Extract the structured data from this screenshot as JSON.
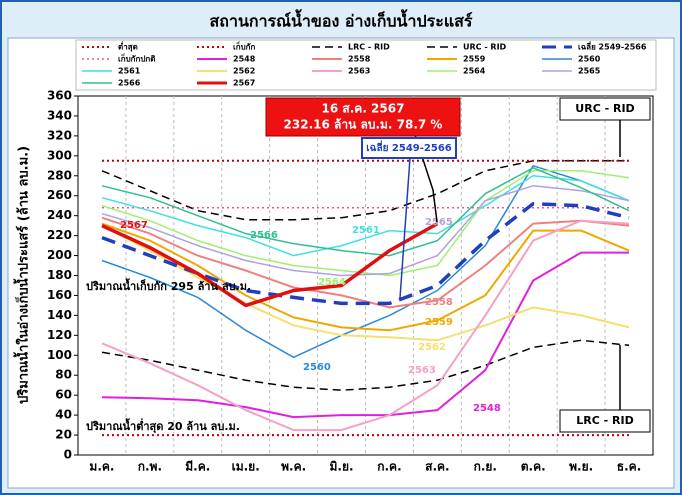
{
  "chart_data": {
    "type": "line",
    "title": "สถานการณ์น้ำของ อ่างเก็บน้ำประแสร์",
    "y_label": "ปริมาณน้ำในอ่างเก็บน้ำประแสร์ (ล้าน ลบ.ม.)",
    "annotations": {
      "latest_date": "16 ส.ค. 2567",
      "latest_volume": "232.16 ล้าน ลบ.ม. 78.7 %",
      "storage_note": "ปริมาณน้ำเก็บกัก 295 ล้าน ลบ.ม.",
      "min_note": "ปริมาณน้ำต่ำสุด 20 ล้าน ลบ.ม."
    },
    "categories": [
      "ม.ค.",
      "ก.พ.",
      "มี.ค.",
      "เม.ย.",
      "พ.ค.",
      "มิ.ย.",
      "ก.ค.",
      "ส.ค.",
      "ก.ย.",
      "ต.ค.",
      "พ.ย.",
      "ธ.ค."
    ],
    "ylim": [
      0,
      360
    ],
    "yticks": [
      0,
      20,
      40,
      60,
      80,
      100,
      120,
      140,
      160,
      180,
      200,
      220,
      240,
      260,
      280,
      300,
      320,
      340,
      360
    ],
    "grid": "x",
    "series": [
      {
        "name": "ต่ำสุด",
        "color": "#c00000",
        "style": "dotted",
        "width": 2,
        "values": [
          20,
          20,
          20,
          20,
          20,
          20,
          20,
          20,
          20,
          20,
          20,
          20
        ]
      },
      {
        "name": "เก็บกัก",
        "color": "#c00000",
        "style": "dotted",
        "width": 2,
        "values": [
          295,
          295,
          295,
          295,
          295,
          295,
          295,
          295,
          295,
          295,
          295,
          295
        ]
      },
      {
        "name": "LRC - RID",
        "color": "#000000",
        "style": "dashed",
        "width": 1.5,
        "values": [
          103,
          95,
          85,
          75,
          68,
          65,
          68,
          75,
          90,
          108,
          115,
          110
        ]
      },
      {
        "name": "URC - RID",
        "color": "#000000",
        "style": "dashed",
        "width": 1.5,
        "values": [
          285,
          265,
          245,
          236,
          236,
          238,
          245,
          262,
          285,
          295,
          295,
          295
        ]
      },
      {
        "name": "เฉลี่ย 2549-2566",
        "color": "#1f3fbf",
        "style": "bigdash",
        "width": 3.5,
        "values": [
          218,
          200,
          182,
          165,
          158,
          152,
          152,
          170,
          215,
          252,
          250,
          238
        ]
      },
      {
        "name": "เก็บกักปกติ",
        "color": "#e05a9a",
        "style": "dotted",
        "width": 1.5,
        "values": [
          248,
          248,
          248,
          248,
          248,
          248,
          248,
          248,
          248,
          248,
          248,
          248
        ]
      },
      {
        "name": "2548",
        "color": "#e020e0",
        "style": "solid",
        "width": 2,
        "values": [
          58,
          57,
          55,
          48,
          38,
          40,
          40,
          45,
          85,
          175,
          203,
          203
        ]
      },
      {
        "name": "2558",
        "color": "#f08080",
        "style": "solid",
        "width": 2,
        "values": [
          238,
          222,
          200,
          185,
          168,
          160,
          148,
          155,
          190,
          232,
          235,
          230
        ]
      },
      {
        "name": "2559",
        "color": "#f0a800",
        "style": "solid",
        "width": 2,
        "values": [
          232,
          215,
          190,
          160,
          138,
          128,
          125,
          135,
          160,
          225,
          225,
          205
        ]
      },
      {
        "name": "2560",
        "color": "#2a8ad8",
        "style": "solid",
        "width": 1.5,
        "values": [
          195,
          178,
          158,
          125,
          98,
          120,
          140,
          165,
          210,
          290,
          275,
          255
        ]
      },
      {
        "name": "2561",
        "color": "#40e0e0",
        "style": "solid",
        "width": 1.5,
        "values": [
          258,
          245,
          230,
          218,
          200,
          210,
          225,
          222,
          250,
          280,
          275,
          255
        ]
      },
      {
        "name": "2562",
        "color": "#f5e070",
        "style": "solid",
        "width": 2,
        "values": [
          230,
          205,
          178,
          152,
          130,
          120,
          118,
          115,
          130,
          148,
          140,
          128
        ]
      },
      {
        "name": "2563",
        "color": "#f4a0c8",
        "style": "solid",
        "width": 2,
        "values": [
          112,
          92,
          70,
          45,
          25,
          25,
          40,
          70,
          140,
          215,
          235,
          232
        ]
      },
      {
        "name": "2564",
        "color": "#a0f070",
        "style": "solid",
        "width": 1.5,
        "values": [
          250,
          235,
          215,
          200,
          190,
          185,
          180,
          190,
          255,
          285,
          285,
          278
        ]
      },
      {
        "name": "2565",
        "color": "#b0a0e0",
        "style": "solid",
        "width": 1.5,
        "values": [
          242,
          228,
          210,
          195,
          185,
          180,
          182,
          200,
          255,
          270,
          265,
          255
        ]
      },
      {
        "name": "2566",
        "color": "#30c090",
        "style": "solid",
        "width": 1.5,
        "values": [
          270,
          258,
          240,
          222,
          212,
          205,
          200,
          215,
          262,
          288,
          268,
          245
        ]
      },
      {
        "name": "2567",
        "color": "#e01010",
        "style": "solid",
        "width": 3.5,
        "values": [
          230,
          208,
          182,
          150,
          165,
          170,
          205,
          232,
          null,
          null,
          null,
          null
        ]
      }
    ]
  }
}
